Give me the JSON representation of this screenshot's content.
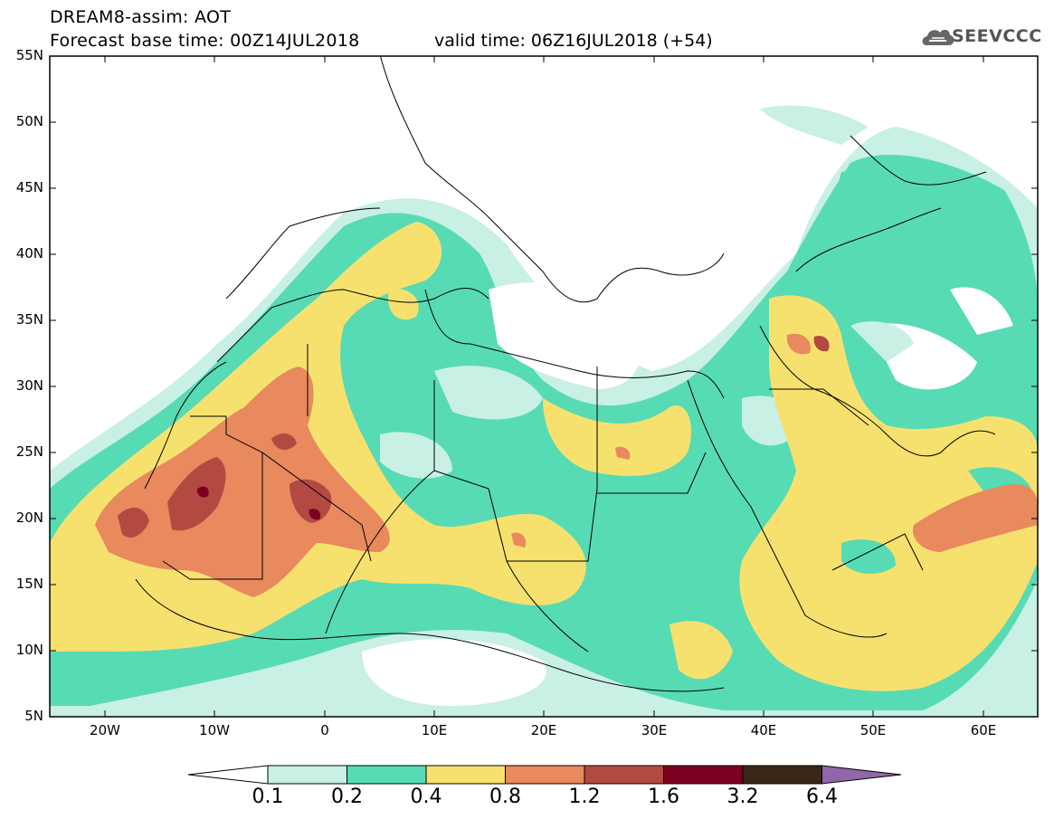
{
  "header": {
    "title": "DREAM8-assim: AOT",
    "base_time": "Forecast base time: 00Z14JUL2018",
    "valid_time": "valid time: 06Z16JUL2018 (+54)",
    "logo_text": "SEEVCCC"
  },
  "axes": {
    "lat_labels": [
      "55N",
      "50N",
      "45N",
      "40N",
      "35N",
      "30N",
      "25N",
      "20N",
      "15N",
      "10N",
      "5N"
    ],
    "lon_labels": [
      "20W",
      "10W",
      "0",
      "10E",
      "20E",
      "30E",
      "40E",
      "50E",
      "60E"
    ]
  },
  "colorbar": {
    "labels": [
      "0.1",
      "0.2",
      "0.4",
      "0.8",
      "1.2",
      "1.6",
      "3.2",
      "6.4"
    ],
    "colors": [
      "#c8f0e4",
      "#57dbb4",
      "#f7e16e",
      "#e8895e",
      "#b24a42",
      "#7d0022",
      "#3a2616",
      "#9067a8"
    ]
  }
}
